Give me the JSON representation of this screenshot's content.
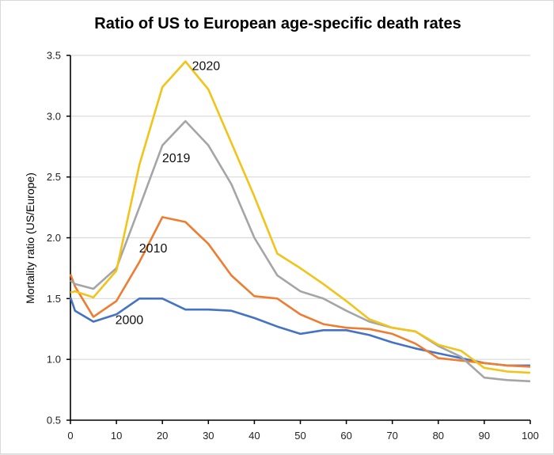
{
  "chart_data": {
    "type": "line",
    "title": "Ratio of US to European age-specific death rates",
    "xlabel": "",
    "ylabel": "Mortality ratio (US/Europe)",
    "xlim": [
      0,
      100
    ],
    "ylim": [
      0.5,
      3.5
    ],
    "xticks": [
      0,
      10,
      20,
      30,
      40,
      50,
      60,
      70,
      80,
      90,
      100
    ],
    "yticks": [
      "0.5",
      "1.0",
      "1.5",
      "2.0",
      "2.5",
      "3.0",
      "3.5"
    ],
    "grid": "horizontal",
    "legend": "inline labels",
    "x": [
      0,
      1,
      5,
      10,
      15,
      20,
      25,
      30,
      35,
      40,
      45,
      50,
      55,
      60,
      65,
      70,
      75,
      80,
      85,
      90,
      95,
      100
    ],
    "series": [
      {
        "name": "2000",
        "color": "#4472c4",
        "values": [
          1.51,
          1.4,
          1.31,
          1.37,
          1.5,
          1.5,
          1.41,
          1.41,
          1.4,
          1.34,
          1.27,
          1.21,
          1.24,
          1.24,
          1.2,
          1.14,
          1.09,
          1.05,
          1.01,
          0.97,
          0.95,
          0.95
        ]
      },
      {
        "name": "2010",
        "color": "#ed7d31",
        "values": [
          1.7,
          1.6,
          1.35,
          1.48,
          1.8,
          2.17,
          2.13,
          1.95,
          1.69,
          1.52,
          1.5,
          1.37,
          1.29,
          1.26,
          1.25,
          1.21,
          1.13,
          1.01,
          0.99,
          0.97,
          0.95,
          0.94
        ]
      },
      {
        "name": "2019",
        "color": "#a5a5a5",
        "values": [
          1.65,
          1.62,
          1.58,
          1.75,
          2.25,
          2.76,
          2.96,
          2.76,
          2.44,
          2.0,
          1.69,
          1.56,
          1.5,
          1.4,
          1.31,
          1.26,
          1.23,
          1.11,
          1.02,
          0.85,
          0.83,
          0.82
        ]
      },
      {
        "name": "2020",
        "color": "#f2c318",
        "values": [
          1.55,
          1.56,
          1.51,
          1.73,
          2.6,
          3.24,
          3.45,
          3.22,
          2.78,
          2.34,
          1.87,
          1.75,
          1.62,
          1.48,
          1.33,
          1.26,
          1.23,
          1.12,
          1.07,
          0.93,
          0.9,
          0.89
        ]
      }
    ],
    "annotations": [
      {
        "text": "2020",
        "x": 29.5,
        "y": 3.38
      },
      {
        "text": "2019",
        "x": 23,
        "y": 2.62
      },
      {
        "text": "2010",
        "x": 18,
        "y": 1.88
      },
      {
        "text": "2000",
        "x": 12.8,
        "y": 1.29
      }
    ]
  }
}
